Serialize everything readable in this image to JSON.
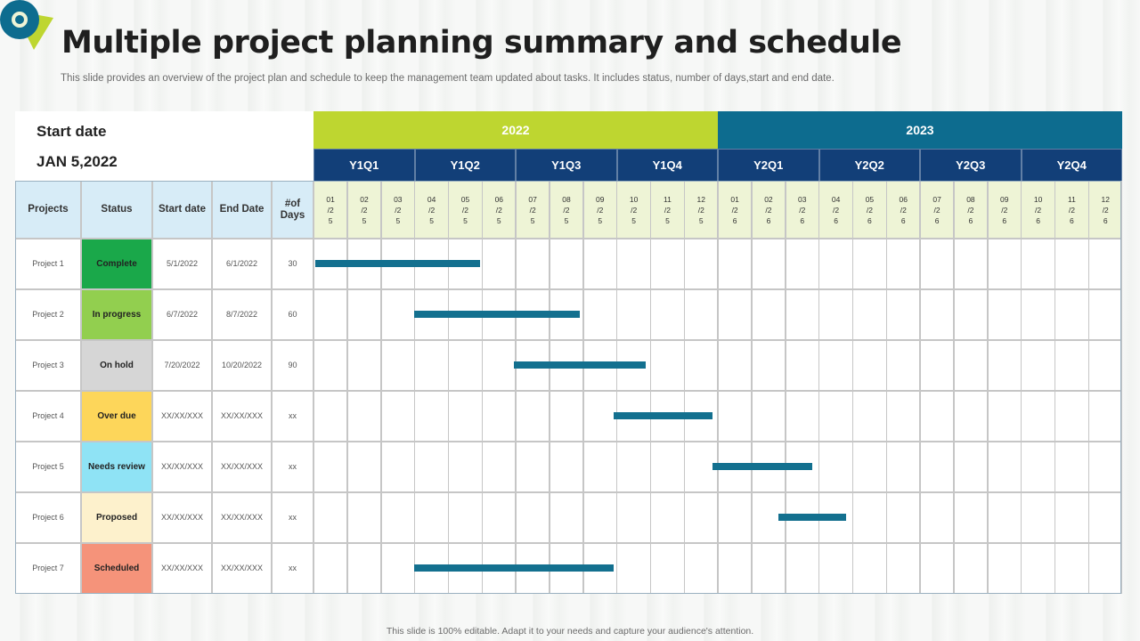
{
  "header": {
    "title": "Multiple project planning summary and schedule",
    "subtitle": "This slide provides an overview of the project plan and schedule to keep the management team updated about tasks. It includes status, number of days,start and end date."
  },
  "start": {
    "label": "Start date",
    "value": "JAN 5,2022"
  },
  "years": [
    "2022",
    "2023"
  ],
  "quarters": [
    "Y1Q1",
    "Y1Q2",
    "Y1Q3",
    "Y1Q4",
    "Y2Q1",
    "Y2Q2",
    "Y2Q3",
    "Y2Q4"
  ],
  "columns": [
    "Projects",
    "Status",
    "Start date",
    "End Date",
    "#of Days"
  ],
  "months": [
    "01\n/2\n5",
    "02\n/2\n5",
    "03\n/2\n5",
    "04\n/2\n5",
    "05\n/2\n5",
    "06\n/2\n5",
    "07\n/2\n5",
    "08\n/2\n5",
    "09\n/2\n5",
    "10\n/2\n5",
    "11\n/2\n5",
    "12\n/2\n5",
    "01\n/2\n6",
    "02\n/2\n6",
    "03\n/2\n6",
    "04\n/2\n6",
    "05\n/2\n6",
    "06\n/2\n6",
    "07\n/2\n6",
    "08\n/2\n6",
    "09\n/2\n6",
    "10\n/2\n6",
    "11\n/2\n6",
    "12\n/2\n6"
  ],
  "projects": [
    {
      "name": "Project 1",
      "status": "Complete",
      "status_color": "#1aa84a",
      "start": "5/1/2022",
      "end": "6/1/2022",
      "days": "30",
      "bar_start": 0.05,
      "bar_end": 4.95
    },
    {
      "name": "Project 2",
      "status": "In progress",
      "status_color": "#92cf4f",
      "start": "6/7/2022",
      "end": "8/7/2022",
      "days": "60",
      "bar_start": 3.0,
      "bar_end": 7.9
    },
    {
      "name": "Project 3",
      "status": "On hold",
      "status_color": "#d6d6d6",
      "start": "7/20/2022",
      "end": "10/20/2022",
      "days": "90",
      "bar_start": 5.95,
      "bar_end": 9.85
    },
    {
      "name": "Project 4",
      "status": "Over due",
      "status_color": "#fdd65a",
      "start": "XX/XX/XXX",
      "end": "XX/XX/XXX",
      "days": "xx",
      "bar_start": 8.9,
      "bar_end": 11.85
    },
    {
      "name": "Project 5",
      "status": "Needs review",
      "status_color": "#8fe3f5",
      "start": "XX/XX/XXX",
      "end": "XX/XX/XXX",
      "days": "xx",
      "bar_start": 11.85,
      "bar_end": 14.8
    },
    {
      "name": "Project 6",
      "status": "Proposed",
      "status_color": "#fdf1cc",
      "start": "XX/XX/XXX",
      "end": "XX/XX/XXX",
      "days": "xx",
      "bar_start": 13.8,
      "bar_end": 15.8
    },
    {
      "name": "Project 7",
      "status": "Scheduled",
      "status_color": "#f5937a",
      "start": "XX/XX/XXX",
      "end": "XX/XX/XXX",
      "days": "xx",
      "bar_start": 3.0,
      "bar_end": 8.9
    }
  ],
  "colors": {
    "bar": "#13708f",
    "year1": "#bed630",
    "year2": "#0d6c8f",
    "quarter": "#123f78",
    "header": "#d7ecf7",
    "month_header": "#eef4d6"
  },
  "footer": "This slide is 100% editable. Adapt it to your needs and capture your audience's attention."
}
